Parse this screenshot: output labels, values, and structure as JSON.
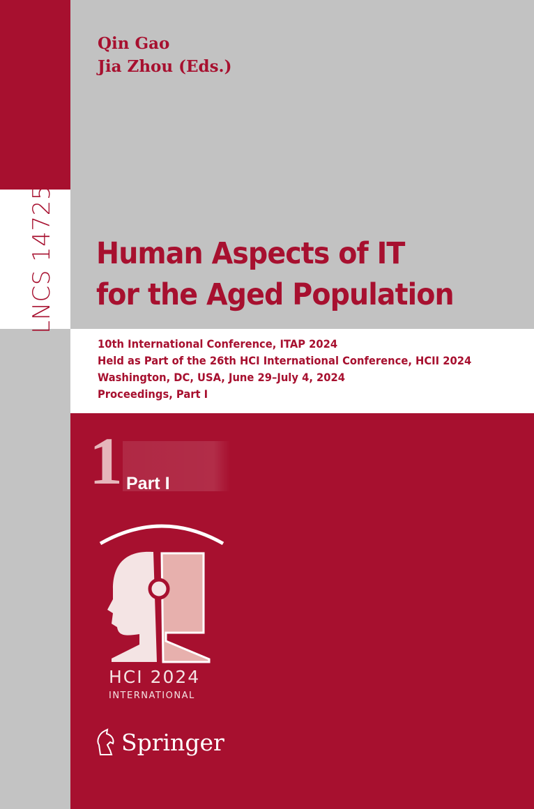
{
  "spine": {
    "series_number": "LNCS 14725"
  },
  "editors": [
    "Qin Gao",
    "Jia Zhou (Eds.)"
  ],
  "title": [
    "Human Aspects of IT",
    "for the Aged Population"
  ],
  "subtitle": [
    "10th International Conference, ITAP 2024",
    "Held as Part of the 26th HCI International Conference, HCII 2024",
    "Washington, DC, USA, June 29–July 4, 2024",
    "Proceedings, Part I"
  ],
  "part": {
    "number": "1",
    "label": "Part I"
  },
  "logo": {
    "line1": "HCI 2024",
    "line2": "INTERNATIONAL"
  },
  "publisher": {
    "name": "Springer",
    "icon": "springer-horse-icon"
  },
  "colors": {
    "brand_red": "#a7102f",
    "grey": "#c2c2c2"
  }
}
